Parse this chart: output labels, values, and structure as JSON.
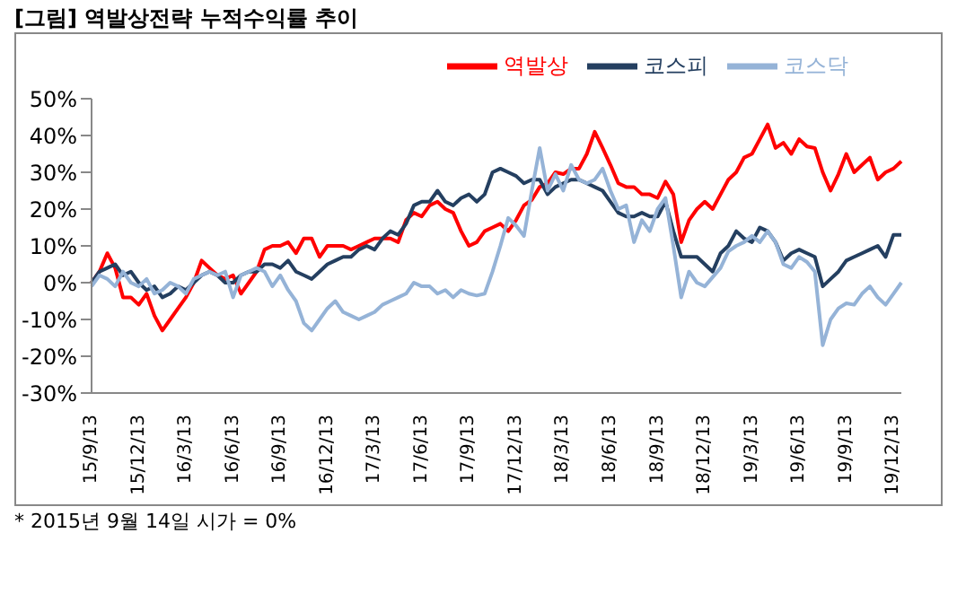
{
  "chart_data": {
    "type": "line",
    "title": "[그림] 역발상전략 누적수익률 추이",
    "categories": [
      "15/9/13",
      null,
      null,
      null,
      null,
      null,
      "15/12/13",
      null,
      null,
      null,
      null,
      null,
      "16/3/13",
      null,
      null,
      null,
      null,
      null,
      "16/6/13",
      null,
      null,
      null,
      null,
      null,
      "16/9/13",
      null,
      null,
      null,
      null,
      null,
      "16/12/13",
      null,
      null,
      null,
      null,
      null,
      "17/3/13",
      null,
      null,
      null,
      null,
      null,
      "17/6/13",
      null,
      null,
      null,
      null,
      null,
      "17/9/13",
      null,
      null,
      null,
      null,
      null,
      "17/12/13",
      null,
      null,
      null,
      null,
      null,
      "18/3/13",
      null,
      null,
      null,
      null,
      null,
      "18/6/13",
      null,
      null,
      null,
      null,
      null,
      "18/9/13",
      null,
      null,
      null,
      null,
      null,
      "18/12/13",
      null,
      null,
      null,
      null,
      null,
      "19/3/13",
      null,
      null,
      null,
      null,
      null,
      "19/6/13",
      null,
      null,
      null,
      null,
      null,
      "19/9/13",
      null,
      null,
      null,
      null,
      null,
      "19/12/13",
      null
    ],
    "series": [
      {
        "name": "역발상",
        "color": "#ff0000",
        "values": [
          0,
          3,
          8,
          4,
          -4,
          -4,
          -6,
          -3,
          -9,
          -13,
          -10,
          -7,
          -4,
          0,
          6,
          4,
          2,
          1,
          2,
          -3,
          0,
          3,
          9,
          10,
          10,
          11,
          8,
          12,
          12,
          7,
          10,
          10,
          10,
          9,
          10,
          11,
          12,
          12,
          12,
          11,
          17,
          19,
          18,
          21,
          22,
          20,
          19,
          14,
          10,
          11,
          14,
          15,
          16,
          14,
          17,
          21,
          22.5,
          26,
          27,
          30,
          29.5,
          31,
          31,
          35,
          41,
          36.6,
          32,
          27,
          26,
          26,
          24,
          24,
          23,
          27.5,
          24,
          11,
          17,
          20,
          22,
          20,
          24,
          28,
          30,
          34,
          35,
          39,
          43,
          36.6,
          38,
          35,
          39,
          37,
          36.6,
          30,
          25,
          29.5,
          35,
          30,
          32,
          34,
          28,
          30,
          31,
          33
        ]
      },
      {
        "name": "코스피",
        "color": "#243f60",
        "values": [
          0,
          3,
          4,
          5,
          2,
          3,
          0,
          -2,
          -1,
          -4,
          -3,
          -1,
          -2,
          0,
          2,
          3,
          2,
          0,
          0,
          2,
          3,
          3,
          5,
          5,
          4,
          6,
          3,
          2,
          1,
          3,
          5,
          6,
          7,
          7,
          9,
          10,
          9,
          12,
          14,
          13,
          16,
          21,
          22,
          22,
          25,
          22,
          21,
          23,
          24,
          22,
          24,
          30,
          31,
          30,
          29,
          27,
          28,
          28,
          24,
          26,
          27,
          28,
          28,
          27,
          26,
          25,
          22,
          19,
          18,
          18,
          19,
          18,
          18,
          22,
          14,
          7,
          7,
          7,
          5,
          3,
          8,
          10,
          14,
          12,
          11,
          15,
          14,
          11,
          6,
          8,
          9,
          8,
          7,
          -1,
          1,
          3,
          6,
          7,
          8,
          9,
          10,
          7,
          13,
          13
        ]
      },
      {
        "name": "코스닥",
        "color": "#95b3d7",
        "values": [
          -1,
          2,
          1,
          -1,
          3,
          0,
          -1,
          1,
          -3,
          -2,
          0,
          -1,
          -3,
          1,
          2,
          3,
          2,
          3,
          -4,
          2,
          3,
          4,
          3,
          -1,
          2,
          -2,
          -5,
          -11,
          -13,
          -10,
          -7,
          -5,
          -8,
          -9,
          -10,
          -9,
          -8,
          -6,
          -5,
          -4,
          -3,
          0,
          -1,
          -1,
          -3,
          -2,
          -4,
          -2,
          -3,
          -3.5,
          -3,
          3,
          10,
          17.6,
          15.5,
          12.7,
          25,
          36.6,
          25,
          29.5,
          25,
          32,
          28,
          27,
          28,
          31,
          25,
          20,
          21,
          11,
          17,
          14,
          20,
          23,
          10,
          -4,
          3,
          0,
          -1,
          1.5,
          4,
          8.5,
          10,
          11,
          12.7,
          11,
          14,
          11,
          5,
          4,
          7,
          5.6,
          3,
          -17,
          -10,
          -7,
          -5.6,
          -6,
          -3,
          -1,
          -4,
          -6,
          -3,
          0
        ]
      }
    ],
    "ylim": [
      -30,
      50
    ],
    "yticks": [
      {
        "value": -30,
        "label": "-30%"
      },
      {
        "value": -20,
        "label": "-20%"
      },
      {
        "value": -10,
        "label": "-10%"
      },
      {
        "value": 0,
        "label": "0%"
      },
      {
        "value": 10,
        "label": "10%"
      },
      {
        "value": 20,
        "label": "20%"
      },
      {
        "value": 30,
        "label": "30%"
      },
      {
        "value": 40,
        "label": "40%"
      },
      {
        "value": 50,
        "label": "50%"
      }
    ],
    "legend": "top",
    "marker": "none",
    "line_style": "solid",
    "annotations": [
      "* 2015년 9월 14일 시가 = 0%"
    ]
  }
}
